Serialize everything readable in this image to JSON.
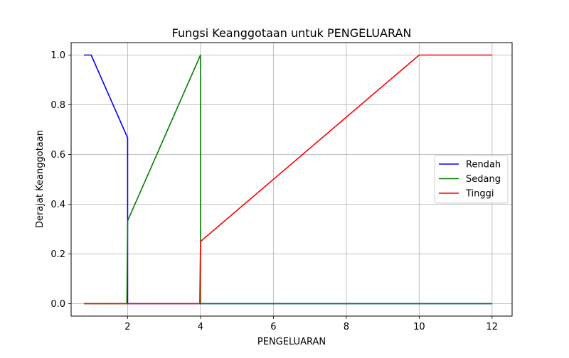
{
  "chart_data": {
    "type": "line",
    "title": "Fungsi Keanggotaan untuk PENGELUARAN",
    "xlabel": "PENGELUARAN",
    "ylabel": "Derajat Keanggotaan",
    "xlim": [
      0.45,
      12.55
    ],
    "ylim": [
      -0.05,
      1.05
    ],
    "xticks": [
      2,
      4,
      6,
      8,
      10,
      12
    ],
    "yticks": [
      0.0,
      0.2,
      0.4,
      0.6,
      0.8,
      1.0
    ],
    "xtick_labels": [
      "2",
      "4",
      "6",
      "8",
      "10",
      "12"
    ],
    "ytick_labels": [
      "0.0",
      "0.2",
      "0.4",
      "0.6",
      "0.8",
      "1.0"
    ],
    "grid": true,
    "legend_position": "center-right",
    "series": [
      {
        "name": "Rendah",
        "color": "#0000ff",
        "x": [
          0.8,
          1.0,
          2.0,
          2.0,
          2.02,
          12.0
        ],
        "y": [
          1.0,
          1.0,
          0.667,
          0.0,
          0.0,
          0.0
        ]
      },
      {
        "name": "Sedang",
        "color": "#008000",
        "x": [
          0.8,
          1.98,
          2.0,
          4.0,
          4.0,
          12.0
        ],
        "y": [
          0.0,
          0.0,
          0.333,
          1.0,
          0.0,
          0.0
        ]
      },
      {
        "name": "Tinggi",
        "color": "#ff0000",
        "x": [
          0.8,
          3.98,
          4.0,
          10.0,
          12.0
        ],
        "y": [
          0.0,
          0.0,
          0.25,
          1.0,
          1.0
        ]
      }
    ]
  }
}
